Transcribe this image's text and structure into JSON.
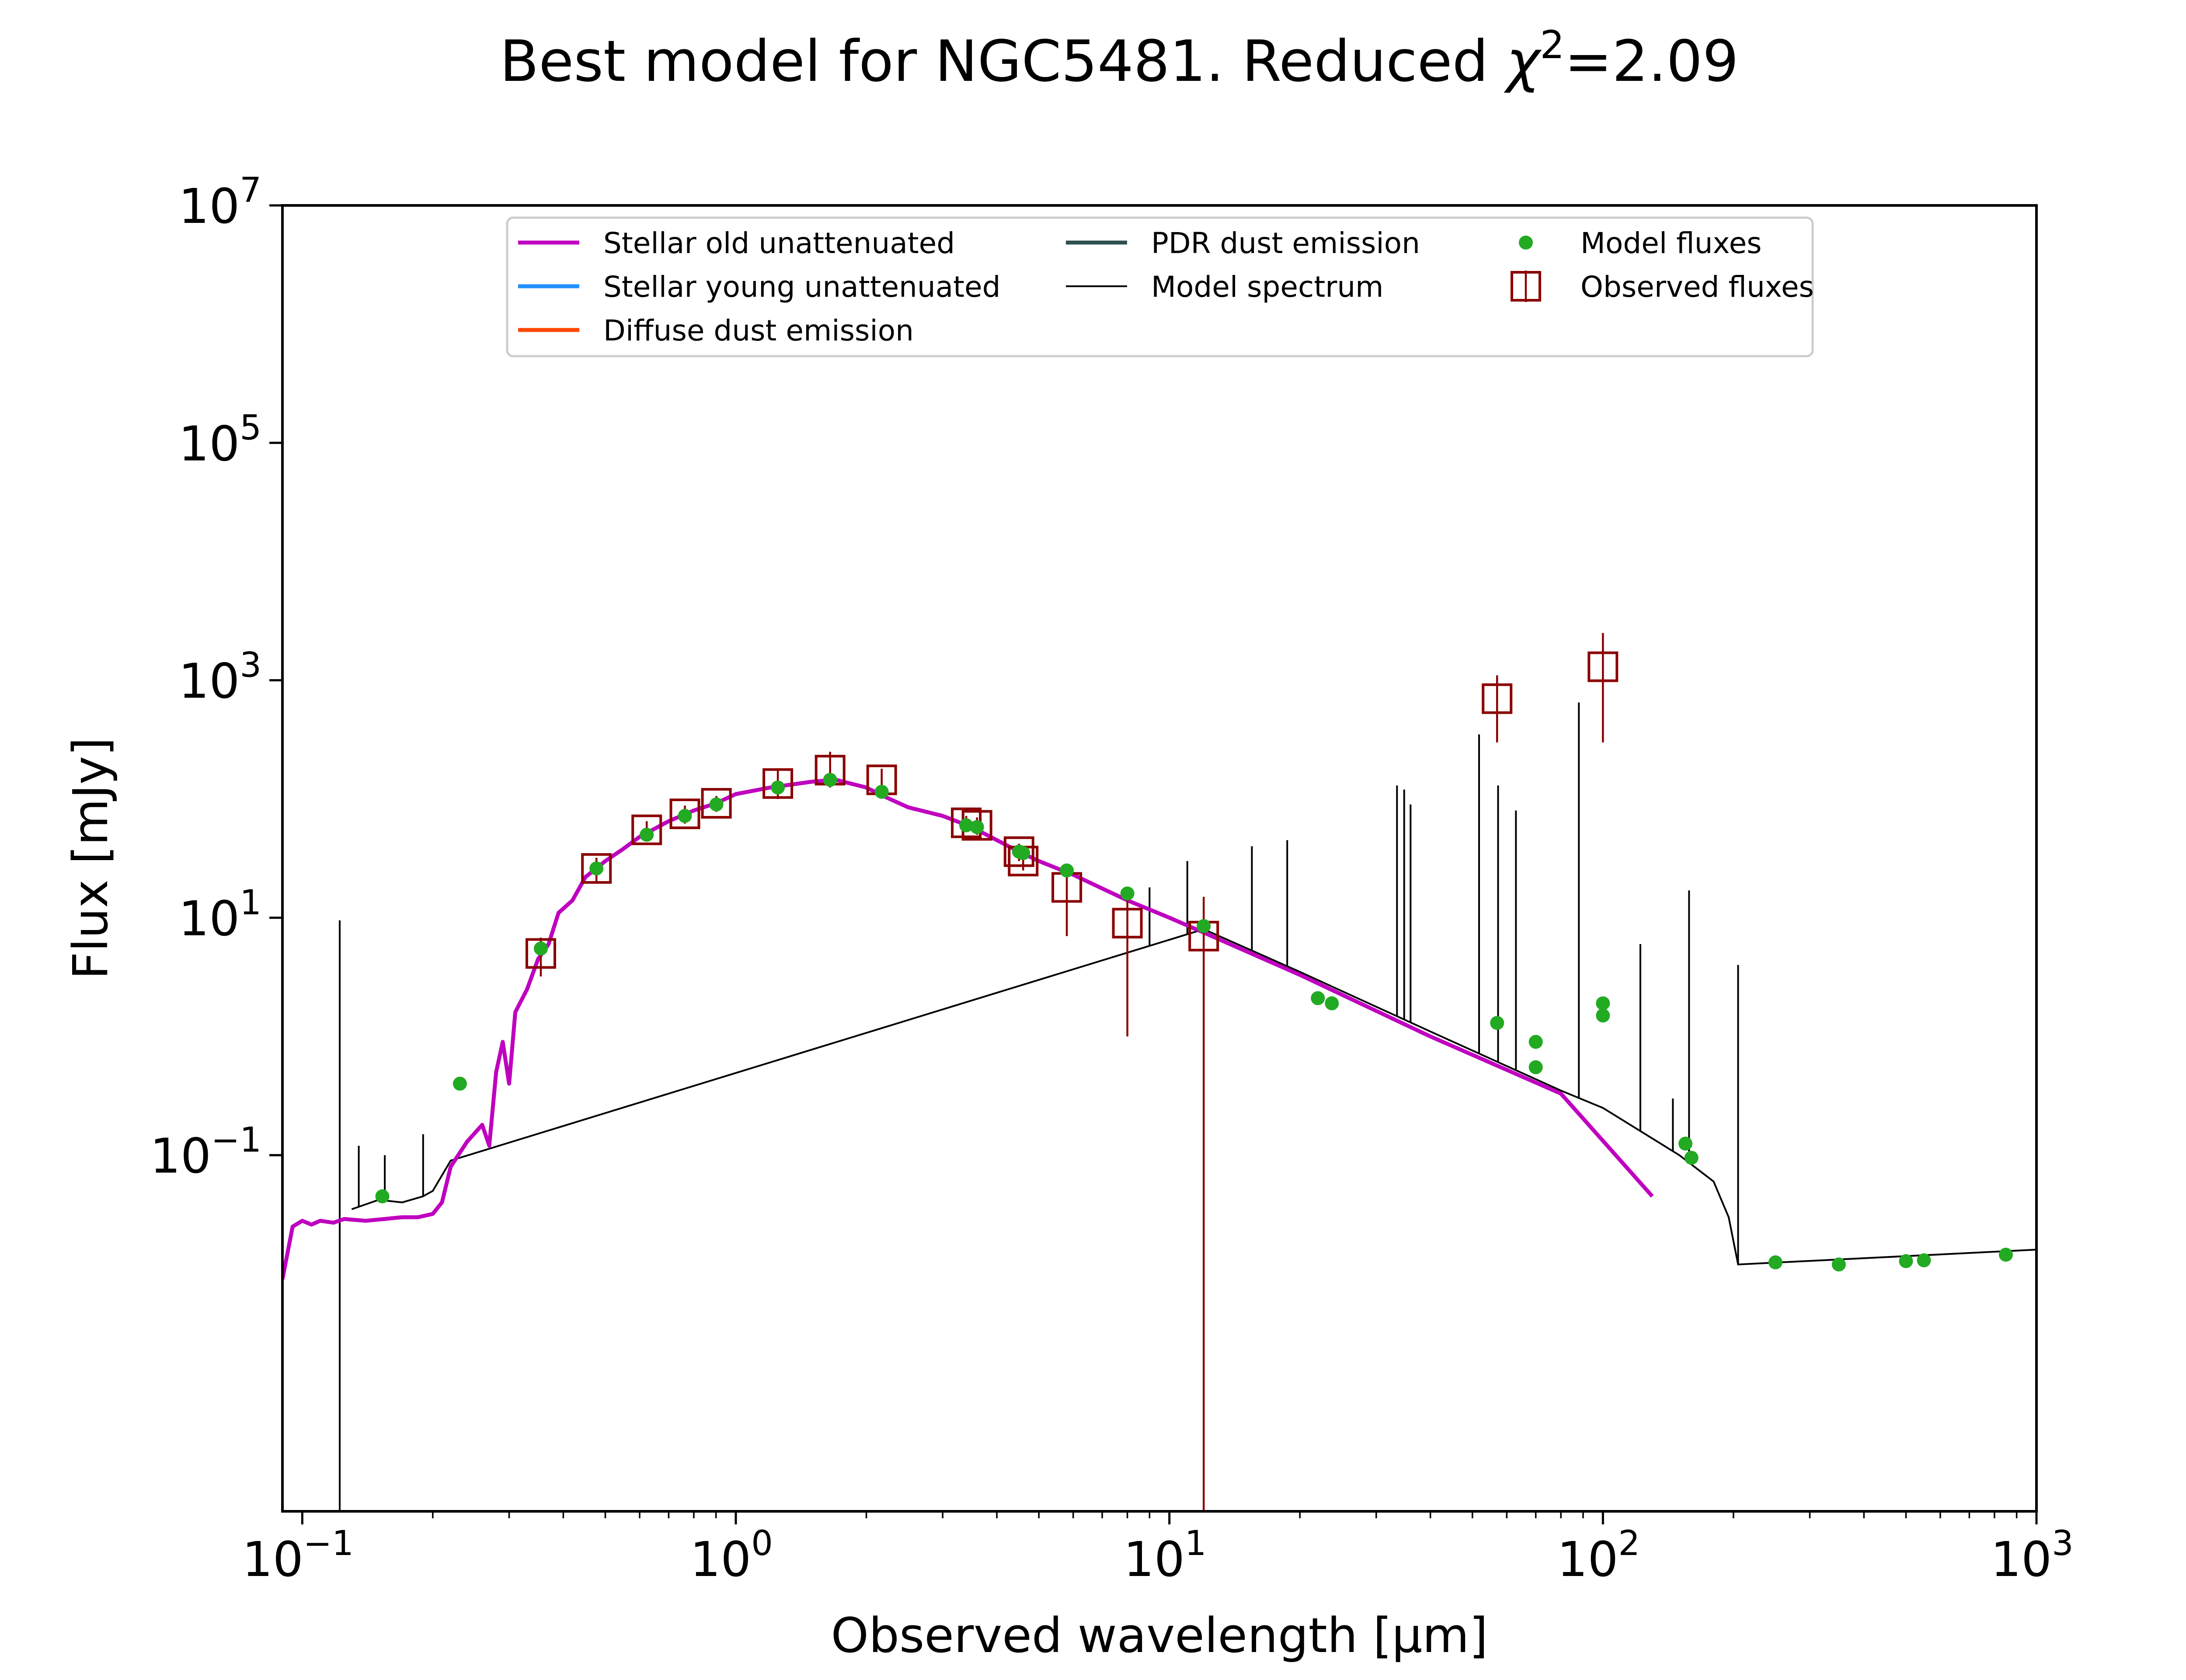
{
  "chart_data": {
    "type": "line",
    "title": "Best model for NGC5481. Reduced χ²=2.09",
    "title_parts": {
      "main": "Best model for NGC5481. Reduced ",
      "chi": "χ",
      "sup": "2",
      "tail": "=2.09"
    },
    "xlabel": "Observed wavelength [μm]",
    "ylabel": "Flux [mJy]",
    "x_scale": "log",
    "y_scale": "log",
    "xlim": [
      0.09,
      1000
    ],
    "ylim": [
      0.0001,
      10000000
    ],
    "x_ticks": [
      {
        "value": 0.1,
        "base": "10",
        "exp": "−1"
      },
      {
        "value": 1,
        "base": "10",
        "exp": "0"
      },
      {
        "value": 10,
        "base": "10",
        "exp": "1"
      },
      {
        "value": 100,
        "base": "10",
        "exp": "2"
      },
      {
        "value": 1000,
        "base": "10",
        "exp": "3"
      }
    ],
    "y_ticks": [
      {
        "value": 0.1,
        "base": "10",
        "exp": "−1"
      },
      {
        "value": 10,
        "base": "10",
        "exp": "1"
      },
      {
        "value": 1000,
        "base": "10",
        "exp": "3"
      },
      {
        "value": 100000,
        "base": "10",
        "exp": "5"
      },
      {
        "value": 10000000,
        "base": "10",
        "exp": "7"
      }
    ],
    "grid": false,
    "legend_position": "top-center",
    "legend": [
      {
        "label": "Stellar old unattenuated",
        "color": "#bf00bf",
        "kind": "line"
      },
      {
        "label": "Stellar young unattenuated",
        "color": "#1e90ff",
        "kind": "line"
      },
      {
        "label": "Diffuse dust emission",
        "color": "#ff4500",
        "kind": "line"
      },
      {
        "label": "PDR dust emission",
        "color": "#2f4f4f",
        "kind": "line"
      },
      {
        "label": "Model spectrum",
        "color": "#000000",
        "kind": "thin-line"
      },
      {
        "label": "Model fluxes",
        "color": "#22aa22",
        "kind": "dot"
      },
      {
        "label": "Observed fluxes",
        "color": "#8b0000",
        "kind": "square"
      }
    ],
    "series": [
      {
        "name": "Stellar old unattenuated",
        "color": "#bf00bf",
        "points": [
          [
            0.09,
            0.009
          ],
          [
            0.095,
            0.025
          ],
          [
            0.1,
            0.028
          ],
          [
            0.105,
            0.026
          ],
          [
            0.11,
            0.028
          ],
          [
            0.118,
            0.027
          ],
          [
            0.125,
            0.029
          ],
          [
            0.14,
            0.028
          ],
          [
            0.155,
            0.029
          ],
          [
            0.17,
            0.03
          ],
          [
            0.185,
            0.03
          ],
          [
            0.2,
            0.032
          ],
          [
            0.21,
            0.04
          ],
          [
            0.22,
            0.08
          ],
          [
            0.24,
            0.13
          ],
          [
            0.26,
            0.18
          ],
          [
            0.27,
            0.12
          ],
          [
            0.28,
            0.5
          ],
          [
            0.29,
            0.9
          ],
          [
            0.3,
            0.4
          ],
          [
            0.31,
            1.6
          ],
          [
            0.33,
            2.5
          ],
          [
            0.35,
            4.5
          ],
          [
            0.37,
            6
          ],
          [
            0.39,
            11
          ],
          [
            0.42,
            14
          ],
          [
            0.45,
            22
          ],
          [
            0.5,
            30
          ],
          [
            0.55,
            38
          ],
          [
            0.6,
            48
          ],
          [
            0.7,
            65
          ],
          [
            0.8,
            80
          ],
          [
            0.9,
            92
          ],
          [
            1.0,
            110
          ],
          [
            1.2,
            125
          ],
          [
            1.5,
            140
          ],
          [
            1.7,
            145
          ],
          [
            2.0,
            125
          ],
          [
            2.2,
            105
          ],
          [
            2.5,
            85
          ],
          [
            3.0,
            72
          ],
          [
            3.5,
            58
          ],
          [
            4.0,
            45
          ],
          [
            4.5,
            36
          ],
          [
            5.0,
            30
          ],
          [
            6.0,
            23
          ],
          [
            8.0,
            14
          ],
          [
            10,
            10
          ],
          [
            12,
            7.5
          ],
          [
            20,
            3.3
          ],
          [
            40,
            1.0
          ],
          [
            80,
            0.33
          ],
          [
            130,
            0.045
          ]
        ]
      },
      {
        "name": "Model spectrum",
        "color": "#000000",
        "points": [
          [
            0.13,
            0.035
          ],
          [
            0.15,
            0.042
          ],
          [
            0.17,
            0.04
          ],
          [
            0.19,
            0.045
          ],
          [
            0.2,
            0.05
          ],
          [
            0.22,
            0.09
          ],
          [
            12,
            8.0
          ],
          [
            20,
            3.5
          ],
          [
            40,
            1.1
          ],
          [
            80,
            0.35
          ],
          [
            100,
            0.25
          ],
          [
            150,
            0.1
          ],
          [
            180,
            0.06
          ],
          [
            195,
            0.03
          ],
          [
            205,
            0.012
          ],
          [
            1000,
            0.016
          ]
        ],
        "emission_lines": [
          [
            0.122,
            9.5
          ],
          [
            0.135,
            0.12
          ],
          [
            0.155,
            0.1
          ],
          [
            0.19,
            0.15
          ],
          [
            9,
            18
          ],
          [
            11,
            30
          ],
          [
            15.5,
            40
          ],
          [
            18.7,
            45
          ],
          [
            33.5,
            130
          ],
          [
            34.8,
            120
          ],
          [
            36,
            90
          ],
          [
            51.8,
            350
          ],
          [
            57.3,
            130
          ],
          [
            63,
            80
          ],
          [
            88,
            650
          ],
          [
            122,
            6
          ],
          [
            145,
            0.3
          ],
          [
            158,
            17
          ],
          [
            205,
            4
          ]
        ]
      },
      {
        "name": "Model fluxes",
        "color": "#22aa22",
        "points": [
          [
            0.153,
            0.045
          ],
          [
            0.231,
            0.4
          ],
          [
            0.355,
            5.5
          ],
          [
            0.477,
            26
          ],
          [
            0.623,
            50
          ],
          [
            0.763,
            72
          ],
          [
            0.902,
            90
          ],
          [
            1.25,
            125
          ],
          [
            1.65,
            145
          ],
          [
            2.17,
            115
          ],
          [
            3.4,
            60
          ],
          [
            3.6,
            58
          ],
          [
            4.5,
            36
          ],
          [
            4.6,
            35
          ],
          [
            5.8,
            25
          ],
          [
            8.0,
            16
          ],
          [
            12,
            8.5
          ],
          [
            22,
            2.1
          ],
          [
            23.7,
            1.9
          ],
          [
            57,
            1.3
          ],
          [
            70,
            0.9
          ],
          [
            70,
            0.55
          ],
          [
            100,
            1.9
          ],
          [
            100,
            1.5
          ],
          [
            155,
            0.125
          ],
          [
            160,
            0.095
          ],
          [
            250,
            0.0125
          ],
          [
            350,
            0.012
          ],
          [
            500,
            0.0128
          ],
          [
            550,
            0.013
          ],
          [
            850,
            0.0145
          ]
        ]
      },
      {
        "name": "Observed fluxes",
        "color": "#8b0000",
        "points": [
          [
            0.355,
            5.0,
            3.2,
            6.8
          ],
          [
            0.477,
            26,
            20,
            32
          ],
          [
            0.623,
            55,
            45,
            65
          ],
          [
            0.763,
            75,
            62,
            88
          ],
          [
            0.902,
            92,
            78,
            106
          ],
          [
            1.25,
            135,
            100,
            175
          ],
          [
            1.65,
            175,
            125,
            250
          ],
          [
            2.17,
            145,
            110,
            180
          ],
          [
            3.4,
            63,
            55,
            72
          ],
          [
            3.6,
            60,
            50,
            70
          ],
          [
            4.5,
            36,
            30,
            42
          ],
          [
            4.6,
            30,
            25,
            35
          ],
          [
            5.8,
            18,
            7.0,
            26
          ],
          [
            8.0,
            9,
            1.0,
            14
          ],
          [
            12,
            7,
            0.0001,
            15
          ],
          [
            57,
            700,
            300,
            1100
          ],
          [
            100,
            1300,
            300,
            2500
          ]
        ]
      }
    ]
  }
}
